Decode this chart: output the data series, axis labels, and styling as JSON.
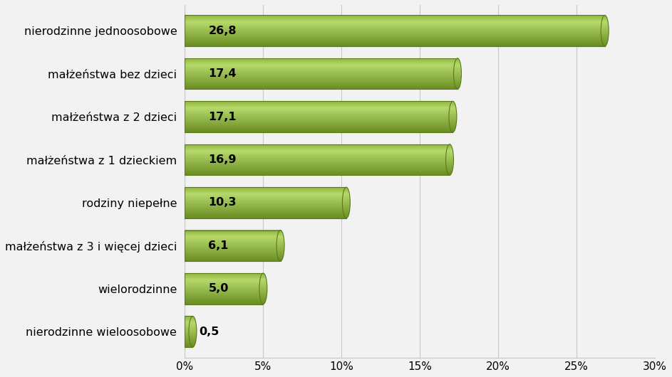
{
  "categories": [
    "nierodzinne wieloosobowe",
    "wielorodzinne",
    "małżeństwa z 3 i więcej dzieci",
    "rodziny niepełne",
    "małżeństwa z 1 dzieckiem",
    "małżeństwa z 2 dzieci",
    "małżeństwa bez dzieci",
    "nierodzinne jednoosobowe"
  ],
  "values": [
    0.5,
    5.0,
    6.1,
    10.3,
    16.9,
    17.1,
    17.4,
    26.8
  ],
  "bar_color_dark": "#6b8e23",
  "bar_color_mid": "#8db53a",
  "bar_color_light": "#b5d96b",
  "bar_color_edge": "#5a7a1a",
  "background_color": "#f2f2f2",
  "plot_bg_color": "#f2f2f2",
  "grid_color": "#c8c8c8",
  "xlim": [
    0,
    30
  ],
  "xtick_values": [
    0,
    5,
    10,
    15,
    20,
    25,
    30
  ],
  "xtick_labels": [
    "0%",
    "5%",
    "10%",
    "15%",
    "20%",
    "25%",
    "30%"
  ],
  "label_fontsize": 11.5,
  "value_fontsize": 11.5,
  "tick_fontsize": 11
}
